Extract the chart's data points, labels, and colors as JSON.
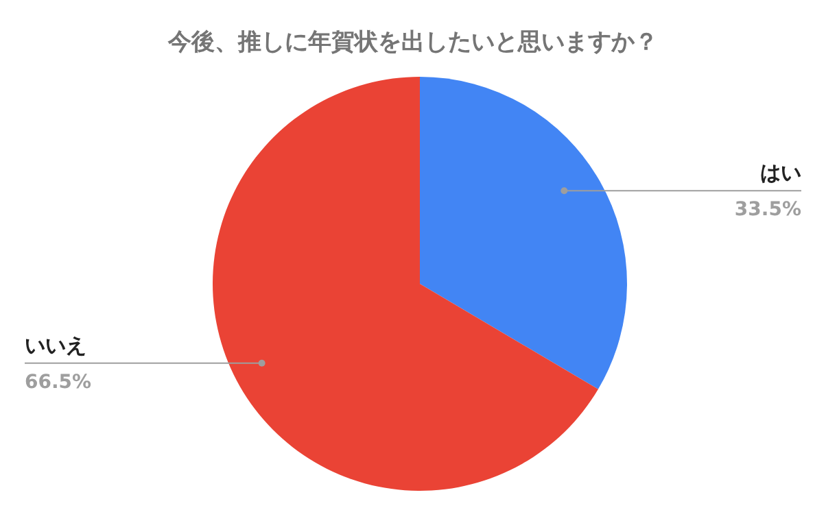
{
  "chart_data": {
    "type": "pie",
    "title": "今後、推しに年賀状を出したいと思いますか？",
    "categories": [
      "はい",
      "いいえ"
    ],
    "values": [
      33.5,
      66.5
    ],
    "colors": [
      "#4285f4",
      "#ea4335"
    ],
    "value_labels": [
      "33.5%",
      "66.5%"
    ]
  }
}
